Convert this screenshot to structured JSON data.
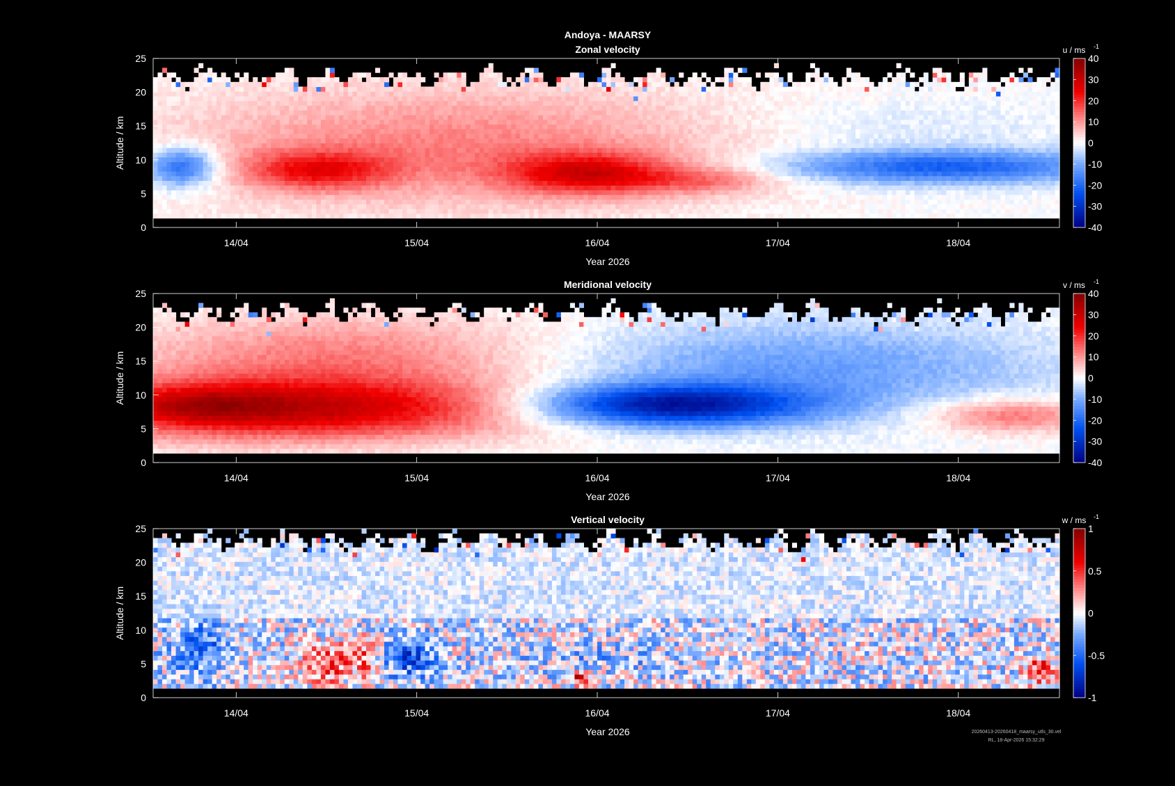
{
  "figure_title": "Andoya - MAARSY",
  "footer": {
    "filename": "20260413-20260418_maarsy_utls_30.vel",
    "stamp": "RL, 18-Apr-2026 15:32:29"
  },
  "chart_data": [
    {
      "type": "heatmap",
      "title": "Zonal velocity",
      "xlabel": "Year 2026",
      "ylabel": "Altitude / km",
      "xtick_labels": [
        "14/04",
        "15/04",
        "16/04",
        "17/04",
        "18/04"
      ],
      "xtick_values": [
        14,
        15,
        16,
        17,
        18
      ],
      "xlim": [
        13.54,
        18.56
      ],
      "ylim": [
        0,
        25
      ],
      "ytick_labels": [
        "0",
        "5",
        "10",
        "15",
        "20",
        "25"
      ],
      "colorbar_label": "u / ms",
      "colorbar_sup": "-1",
      "clim": [
        -40,
        40
      ],
      "colorbar_ticks": [
        "40",
        "30",
        "20",
        "10",
        "0",
        "-10",
        "-20",
        "-30",
        "-40"
      ],
      "data_floor_km": 1.6,
      "data_top_km": 21,
      "features": [
        {
          "t": 15.2,
          "z": 12,
          "dt": 1.6,
          "dz": 9,
          "v": 12
        },
        {
          "t": 14.45,
          "z": 8.5,
          "dt": 0.4,
          "dz": 2.8,
          "v": 18
        },
        {
          "t": 15.95,
          "z": 8,
          "dt": 0.45,
          "dz": 3,
          "v": 22
        },
        {
          "t": 16.6,
          "z": 7,
          "dt": 0.4,
          "dz": 2,
          "v": 10
        },
        {
          "t": 17.9,
          "z": 9,
          "dt": 0.9,
          "dz": 2.5,
          "v": -22
        },
        {
          "t": 17.6,
          "z": 15,
          "dt": 1,
          "dz": 4,
          "v": -3
        },
        {
          "t": 13.7,
          "z": 9,
          "dt": 0.2,
          "dz": 3,
          "v": -22
        }
      ]
    },
    {
      "type": "heatmap",
      "title": "Meridional velocity",
      "xlabel": "Year 2026",
      "ylabel": "Altitude / km",
      "xtick_labels": [
        "14/04",
        "15/04",
        "16/04",
        "17/04",
        "18/04"
      ],
      "xtick_values": [
        14,
        15,
        16,
        17,
        18
      ],
      "xlim": [
        13.54,
        18.56
      ],
      "ylim": [
        0,
        25
      ],
      "ytick_labels": [
        "0",
        "5",
        "10",
        "15",
        "20",
        "25"
      ],
      "colorbar_label": "v / ms",
      "colorbar_sup": "-1",
      "clim": [
        -40,
        40
      ],
      "colorbar_ticks": [
        "40",
        "30",
        "20",
        "10",
        "0",
        "-10",
        "-20",
        "-30",
        "-40"
      ],
      "data_floor_km": 1.6,
      "data_top_km": 21,
      "features": [
        {
          "t": 14.3,
          "z": 8,
          "dt": 1.3,
          "dz": 4.5,
          "v": 30
        },
        {
          "t": 14.6,
          "z": 16,
          "dt": 1.2,
          "dz": 6,
          "v": 12
        },
        {
          "t": 13.8,
          "z": 8.5,
          "dt": 0.4,
          "dz": 2.5,
          "v": 10
        },
        {
          "t": 16.4,
          "z": 8.5,
          "dt": 0.75,
          "dz": 3,
          "v": -34
        },
        {
          "t": 17.1,
          "z": 14,
          "dt": 1.4,
          "dz": 7,
          "v": -12
        },
        {
          "t": 18.3,
          "z": 7,
          "dt": 0.45,
          "dz": 2.5,
          "v": 14
        }
      ]
    },
    {
      "type": "heatmap",
      "title": "Vertical velocity",
      "xlabel": "Year 2026",
      "ylabel": "Altitude / km",
      "xtick_labels": [
        "14/04",
        "15/04",
        "16/04",
        "17/04",
        "18/04"
      ],
      "xtick_values": [
        14,
        15,
        16,
        17,
        18
      ],
      "xlim": [
        13.54,
        18.56
      ],
      "ylim": [
        0,
        25
      ],
      "ytick_labels": [
        "0",
        "5",
        "10",
        "15",
        "20",
        "25"
      ],
      "colorbar_label": "w / ms",
      "colorbar_sup": "-1",
      "clim": [
        -1,
        1
      ],
      "colorbar_ticks": [
        "1",
        "0.5",
        "0",
        "-0.5",
        "-1"
      ],
      "data_floor_km": 1.6,
      "data_top_km": 22,
      "noise": 0.35,
      "features": [
        {
          "t": 14.5,
          "z": 5,
          "dt": 0.12,
          "dz": 3,
          "v": 0.5
        },
        {
          "t": 14.7,
          "z": 6,
          "dt": 0.1,
          "dz": 3,
          "v": 0.4
        },
        {
          "t": 14.95,
          "z": 6,
          "dt": 0.15,
          "dz": 3,
          "v": -0.5
        },
        {
          "t": 13.8,
          "z": 7,
          "dt": 0.15,
          "dz": 4,
          "v": -0.4
        },
        {
          "t": 15.9,
          "z": 3,
          "dt": 0.06,
          "dz": 1,
          "v": 0.7
        },
        {
          "t": 18.45,
          "z": 4,
          "dt": 0.08,
          "dz": 2,
          "v": 0.6
        },
        {
          "t": 16.0,
          "z": 6,
          "dt": 0.4,
          "dz": 2,
          "v": -0.15
        }
      ]
    }
  ]
}
